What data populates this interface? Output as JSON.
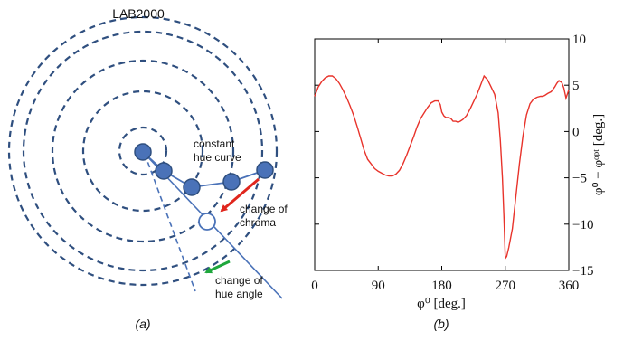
{
  "panel_a": {
    "title": "LAB2000",
    "annotations": {
      "constant_hue_line1": "constant",
      "constant_hue_line2": "hue curve",
      "chroma_line1": "change of",
      "chroma_line2": "chroma",
      "hue_line1": "change of",
      "hue_line2": "hue angle"
    },
    "caption": "(a)",
    "colors": {
      "rings": "#2f4f7f",
      "points": "#4a72b8",
      "red_arrow": "#e0261d",
      "green_arrow": "#1ea73c"
    }
  },
  "panel_b": {
    "caption": "(b)"
  },
  "chart_data": {
    "type": "line",
    "title": "",
    "xlabel": "φ⁰ [deg.]",
    "ylabel": "φ⁰ − φᵒᵖᵗ [deg.]",
    "xlim": [
      0,
      360
    ],
    "ylim": [
      -15,
      10
    ],
    "x_ticks": [
      "0",
      "90",
      "180",
      "270",
      "360"
    ],
    "y_ticks": [
      "−15",
      "−10",
      "−5",
      "0",
      "5",
      "10"
    ],
    "grid": false,
    "line_color": "#e8332b",
    "series": [
      {
        "x": [
          0,
          5,
          10,
          15,
          20,
          25,
          30,
          35,
          40,
          45,
          50,
          55,
          60,
          65,
          70,
          75,
          80,
          85,
          90,
          95,
          100,
          105,
          110,
          115,
          120,
          125,
          130,
          135,
          140,
          145,
          150,
          155,
          160,
          165,
          170,
          175,
          178,
          180,
          183,
          186,
          190,
          193,
          196,
          200,
          203,
          206,
          210,
          215,
          220,
          225,
          230,
          235,
          240,
          245,
          250,
          255,
          260,
          263,
          266,
          268,
          270,
          272,
          275,
          280,
          285,
          290,
          295,
          300,
          305,
          310,
          315,
          320,
          323,
          326,
          330,
          335,
          338,
          340,
          343,
          346,
          350,
          353,
          356,
          360
        ],
        "y": [
          3.8,
          4.8,
          5.4,
          5.8,
          6.0,
          6.0,
          5.7,
          5.2,
          4.5,
          3.7,
          2.8,
          1.8,
          0.6,
          -0.7,
          -2.0,
          -3.0,
          -3.5,
          -4.0,
          -4.3,
          -4.5,
          -4.7,
          -4.8,
          -4.8,
          -4.6,
          -4.2,
          -3.5,
          -2.6,
          -1.6,
          -0.6,
          0.5,
          1.4,
          2.0,
          2.6,
          3.1,
          3.3,
          3.3,
          2.9,
          2.1,
          1.7,
          1.5,
          1.5,
          1.4,
          1.1,
          1.1,
          1.0,
          1.1,
          1.3,
          1.7,
          2.4,
          3.2,
          4.0,
          5.0,
          6.0,
          5.6,
          4.8,
          4.0,
          2.0,
          -1.0,
          -5.0,
          -9.0,
          -13.7,
          -13.5,
          -12.5,
          -10.5,
          -7.0,
          -3.5,
          -0.5,
          1.8,
          3.0,
          3.5,
          3.7,
          3.8,
          3.8,
          3.9,
          4.1,
          4.3,
          4.6,
          4.8,
          5.2,
          5.5,
          5.3,
          4.7,
          3.6,
          4.5
        ]
      }
    ]
  }
}
